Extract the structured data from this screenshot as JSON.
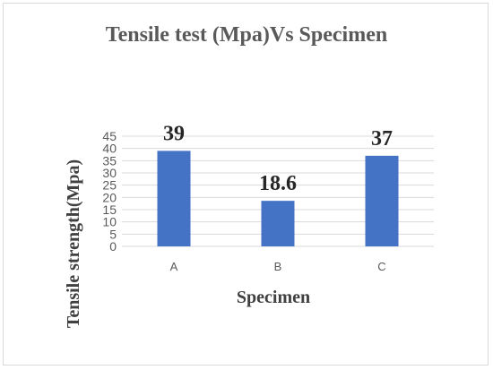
{
  "colors": {
    "bar": "#4472C4",
    "grid": "#d9d9d9",
    "frame": "#d9d9d9"
  },
  "chart_data": {
    "type": "bar",
    "title": "Tensile test (Mpa)Vs Specimen",
    "xlabel": "Specimen",
    "ylabel": "Tensile strength(Mpa)",
    "categories": [
      "A",
      "B",
      "C"
    ],
    "values": [
      39,
      18.6,
      37
    ],
    "data_labels": [
      "39",
      "18.6",
      "37"
    ],
    "ylim": [
      0,
      45
    ],
    "yticks": [
      0,
      5,
      10,
      15,
      20,
      25,
      30,
      35,
      40,
      45
    ],
    "grid": true,
    "legend": "none"
  }
}
